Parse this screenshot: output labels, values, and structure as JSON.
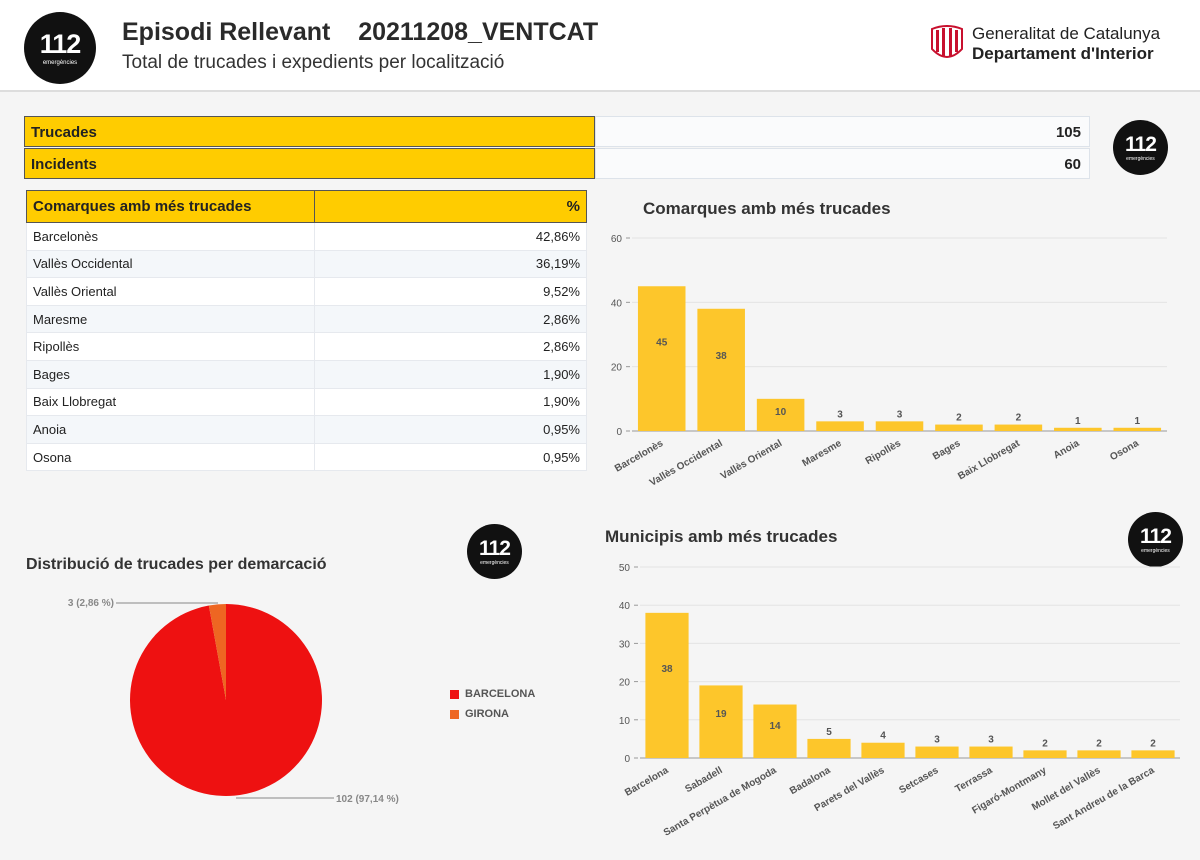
{
  "header": {
    "title": "Episodi Rellevant",
    "code": "20211208_VENTCAT",
    "subtitle": "Total de trucades i expedients per localització",
    "org_line1": "Generalitat de Catalunya",
    "org_line2": "Departament d'Interior"
  },
  "logo": {
    "number": "112",
    "subtext": "emergències"
  },
  "kpis": [
    {
      "label": "Trucades",
      "value": "105"
    },
    {
      "label": "Incidents",
      "value": "60"
    }
  ],
  "comarques_table": {
    "header_name": "Comarques amb més trucades",
    "header_pct": "%",
    "rows": [
      {
        "name": "Barcelonès",
        "pct": "42,86%"
      },
      {
        "name": "Vallès Occidental",
        "pct": "36,19%"
      },
      {
        "name": "Vallès Oriental",
        "pct": "9,52%"
      },
      {
        "name": "Maresme",
        "pct": "2,86%"
      },
      {
        "name": "Ripollès",
        "pct": "2,86%"
      },
      {
        "name": "Bages",
        "pct": "1,90%"
      },
      {
        "name": "Baix Llobregat",
        "pct": "1,90%"
      },
      {
        "name": "Anoia",
        "pct": "0,95%"
      },
      {
        "name": "Osona",
        "pct": "0,95%"
      }
    ]
  },
  "colors": {
    "accent": "#ffcc00",
    "bar": "#fdc62b",
    "barcelona": "#ee1111",
    "girona": "#ee6622"
  },
  "chart_data": [
    {
      "type": "bar",
      "title": "Comarques amb més trucades",
      "categories": [
        "Barcelonès",
        "Vallès Occidental",
        "Vallès Oriental",
        "Maresme",
        "Ripollès",
        "Bages",
        "Baix Llobregat",
        "Anoia",
        "Osona"
      ],
      "values": [
        45,
        38,
        10,
        3,
        3,
        2,
        2,
        1,
        1
      ],
      "yticks": [
        0,
        20,
        40,
        60
      ],
      "ylim": [
        0,
        60
      ],
      "grid": true
    },
    {
      "type": "bar",
      "title": "Municipis amb més trucades",
      "categories": [
        "Barcelona",
        "Sabadell",
        "Santa Perpètua de Mogoda",
        "Badalona",
        "Parets del Vallès",
        "Setcases",
        "Terrassa",
        "Figaró-Montmany",
        "Mollet del Vallès",
        "Sant Andreu de la Barca"
      ],
      "values": [
        38,
        19,
        14,
        5,
        4,
        3,
        3,
        2,
        2,
        2
      ],
      "yticks": [
        0,
        10,
        20,
        30,
        40,
        50
      ],
      "ylim": [
        0,
        50
      ],
      "grid": true
    },
    {
      "type": "pie",
      "title": "Distribució de trucades per demarcació",
      "slices": [
        {
          "name": "BARCELONA",
          "value": 102,
          "label": "102 (97,14 %)"
        },
        {
          "name": "GIRONA",
          "value": 3,
          "label": "3 (2,86 %)"
        }
      ],
      "legend_position": "right"
    }
  ]
}
